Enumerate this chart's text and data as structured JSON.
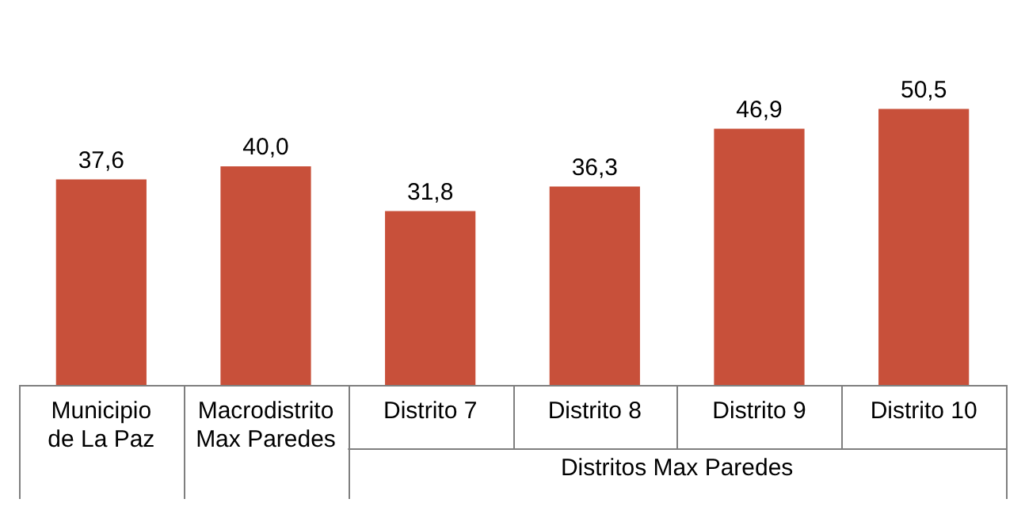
{
  "chart_data": {
    "type": "bar",
    "categories": [
      "Municipio de La Paz",
      "Macrodistrito Max Paredes",
      "Distrito 7",
      "Distrito 8",
      "Distrito 9",
      "Distrito 10"
    ],
    "values": [
      37.6,
      40.0,
      31.8,
      36.3,
      46.9,
      50.5
    ],
    "value_labels": [
      "37,6",
      "40,0",
      "31,8",
      "36,3",
      "46,9",
      "50,5"
    ],
    "color": "#c8503a",
    "xlabel": "Distritos Max Paredes",
    "legend": false,
    "grid": false
  }
}
